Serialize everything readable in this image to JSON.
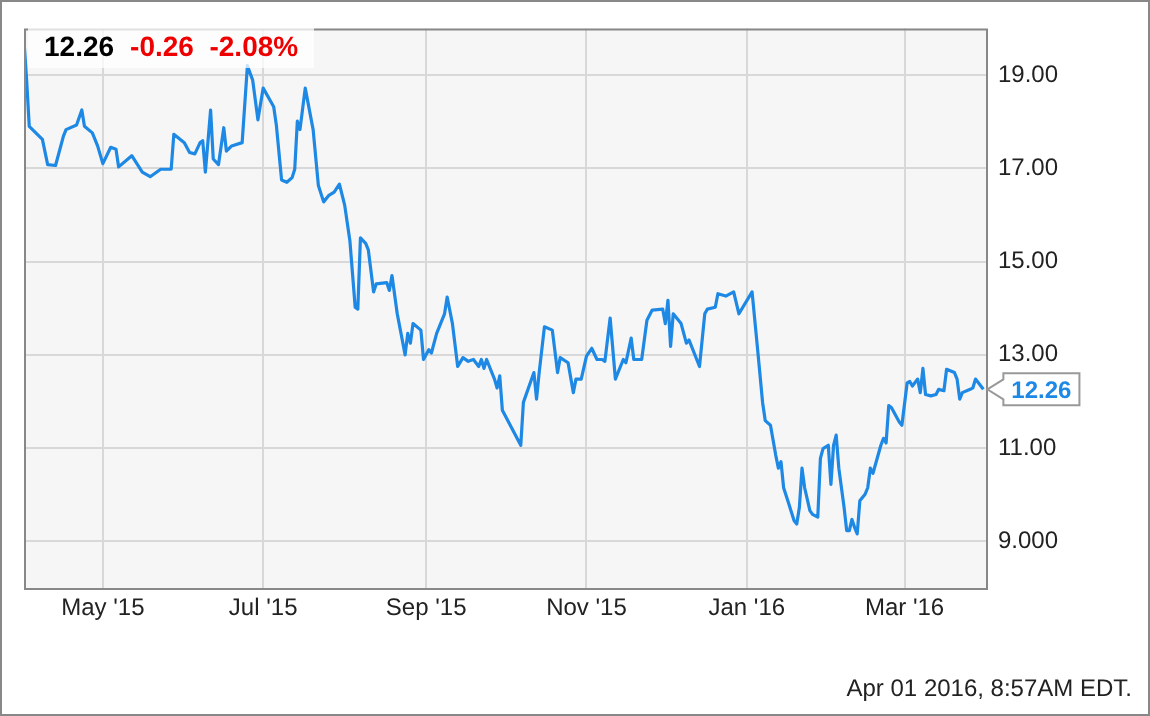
{
  "chart_data": {
    "type": "line",
    "title": "12.26",
    "subtitle": "-0.26  -2.08%",
    "x": [
      "2015-04-01",
      "2015-04-02",
      "2015-04-03",
      "2015-04-08",
      "2015-04-10",
      "2015-04-13",
      "2015-04-16",
      "2015-04-17",
      "2015-04-21",
      "2015-04-23",
      "2015-04-24",
      "2015-04-27",
      "2015-04-29",
      "2015-05-01",
      "2015-05-04",
      "2015-05-06",
      "2015-05-07",
      "2015-05-12",
      "2015-05-16",
      "2015-05-19",
      "2015-05-23",
      "2015-05-27",
      "2015-05-28",
      "2015-06-01",
      "2015-06-03",
      "2015-06-05",
      "2015-06-07",
      "2015-06-08",
      "2015-06-09",
      "2015-06-11",
      "2015-06-12",
      "2015-06-14",
      "2015-06-16",
      "2015-06-17",
      "2015-06-19",
      "2015-06-23",
      "2015-06-25",
      "2015-06-27",
      "2015-06-29",
      "2015-07-01",
      "2015-07-05",
      "2015-07-06",
      "2015-07-08",
      "2015-07-10",
      "2015-07-12",
      "2015-07-13",
      "2015-07-14",
      "2015-07-15",
      "2015-07-17",
      "2015-07-20",
      "2015-07-22",
      "2015-07-24",
      "2015-07-26",
      "2015-07-28",
      "2015-07-30",
      "2015-08-01",
      "2015-08-03",
      "2015-08-05",
      "2015-08-06",
      "2015-08-07",
      "2015-08-09",
      "2015-08-10",
      "2015-08-12",
      "2015-08-13",
      "2015-08-17",
      "2015-08-18",
      "2015-08-19",
      "2015-08-21",
      "2015-08-24",
      "2015-08-25",
      "2015-08-26",
      "2015-08-27",
      "2015-08-30",
      "2015-08-31",
      "2015-09-02",
      "2015-09-03",
      "2015-09-05",
      "2015-09-08",
      "2015-09-09",
      "2015-09-11",
      "2015-09-13",
      "2015-09-15",
      "2015-09-17",
      "2015-09-19",
      "2015-09-21",
      "2015-09-22",
      "2015-09-23",
      "2015-09-24",
      "2015-09-27",
      "2015-09-28",
      "2015-09-29",
      "2015-09-30",
      "2015-10-03",
      "2015-10-07",
      "2015-10-08",
      "2015-10-12",
      "2015-10-13",
      "2015-10-14",
      "2015-10-16",
      "2015-10-19",
      "2015-10-21",
      "2015-10-22",
      "2015-10-25",
      "2015-10-27",
      "2015-10-28",
      "2015-10-30",
      "2015-11-01",
      "2015-11-03",
      "2015-11-05",
      "2015-11-07",
      "2015-11-08",
      "2015-11-10",
      "2015-11-12",
      "2015-11-15",
      "2015-11-16",
      "2015-11-18",
      "2015-11-19",
      "2015-11-22",
      "2015-11-24",
      "2015-11-26",
      "2015-11-30",
      "2015-12-01",
      "2015-12-02",
      "2015-12-03",
      "2015-12-04",
      "2015-12-07",
      "2015-12-09",
      "2015-12-10",
      "2015-12-14",
      "2015-12-16",
      "2015-12-17",
      "2015-12-20",
      "2015-12-21",
      "2015-12-24",
      "2015-12-27",
      "2015-12-29",
      "2016-01-03",
      "2016-01-05",
      "2016-01-07",
      "2016-01-08",
      "2016-01-10",
      "2016-01-12",
      "2016-01-13",
      "2016-01-14",
      "2016-01-15",
      "2016-01-17",
      "2016-01-19",
      "2016-01-20",
      "2016-01-21",
      "2016-01-22",
      "2016-01-23",
      "2016-01-25",
      "2016-01-26",
      "2016-01-28",
      "2016-01-29",
      "2016-01-30",
      "2016-02-01",
      "2016-02-02",
      "2016-02-03",
      "2016-02-04",
      "2016-02-05",
      "2016-02-07",
      "2016-02-08",
      "2016-02-09",
      "2016-02-10",
      "2016-02-11",
      "2016-02-12",
      "2016-02-13",
      "2016-02-15",
      "2016-02-16",
      "2016-02-17",
      "2016-02-18",
      "2016-02-21",
      "2016-02-22",
      "2016-02-23",
      "2016-02-24",
      "2016-02-25",
      "2016-02-28",
      "2016-02-29",
      "2016-03-02",
      "2016-03-03",
      "2016-03-04",
      "2016-03-06",
      "2016-03-07",
      "2016-03-08",
      "2016-03-09",
      "2016-03-11",
      "2016-03-13",
      "2016-03-14",
      "2016-03-16",
      "2016-03-17",
      "2016-03-20",
      "2016-03-21",
      "2016-03-22",
      "2016-03-23",
      "2016-03-26",
      "2016-03-27",
      "2016-03-28",
      "2016-03-31"
    ],
    "series": [
      {
        "color": "#1e88e5",
        "values": [
          19.73,
          18.89,
          17.9,
          17.62,
          17.08,
          17.06,
          17.69,
          17.83,
          17.93,
          18.25,
          17.9,
          17.76,
          17.48,
          17.1,
          17.45,
          17.41,
          17.03,
          17.27,
          16.92,
          16.82,
          16.98,
          16.98,
          17.73,
          17.55,
          17.34,
          17.31,
          17.55,
          17.59,
          16.92,
          18.25,
          17.2,
          17.08,
          17.87,
          17.37,
          17.48,
          17.55,
          19.2,
          18.89,
          18.04,
          18.72,
          18.32,
          17.93,
          16.75,
          16.7,
          16.8,
          16.98,
          18.01,
          17.83,
          18.72,
          17.83,
          16.63,
          16.28,
          16.42,
          16.49,
          16.66,
          16.21,
          15.44,
          14.02,
          13.98,
          15.51,
          15.39,
          15.25,
          14.35,
          14.52,
          14.55,
          14.38,
          14.7,
          13.88,
          13.0,
          13.46,
          13.25,
          13.67,
          13.53,
          12.9,
          13.11,
          13.04,
          13.46,
          13.88,
          14.24,
          13.67,
          12.75,
          12.94,
          12.86,
          12.9,
          12.75,
          12.9,
          12.71,
          12.9,
          12.48,
          12.29,
          12.55,
          11.81,
          11.49,
          11.06,
          11.98,
          12.62,
          12.05,
          12.62,
          13.6,
          13.53,
          12.62,
          12.94,
          12.83,
          12.19,
          12.48,
          12.48,
          12.97,
          13.14,
          12.9,
          12.9,
          12.86,
          13.79,
          12.48,
          12.9,
          12.83,
          13.36,
          12.9,
          12.9,
          13.74,
          13.96,
          13.98,
          13.67,
          14.17,
          13.18,
          13.88,
          13.67,
          13.25,
          13.32,
          12.75,
          13.88,
          13.98,
          14.02,
          14.31,
          14.26,
          14.35,
          13.88,
          14.35,
          13.18,
          11.98,
          11.59,
          11.49,
          10.85,
          10.57,
          10.71,
          10.15,
          9.8,
          9.44,
          9.37,
          9.73,
          10.57,
          10.15,
          9.66,
          9.58,
          9.52,
          10.78,
          10.99,
          11.06,
          10.22,
          11.06,
          11.28,
          10.57,
          9.73,
          9.23,
          9.23,
          9.47,
          9.3,
          9.16,
          9.87,
          10.01,
          10.15,
          10.57,
          10.46,
          11.06,
          11.21,
          11.11,
          11.91,
          11.87,
          11.56,
          11.49,
          12.4,
          12.43,
          12.33,
          12.48,
          12.19,
          12.71,
          12.15,
          12.12,
          12.15,
          12.26,
          12.23,
          12.69,
          12.62,
          12.48,
          12.05,
          12.19,
          12.26,
          12.29,
          12.48,
          12.26
        ]
      }
    ],
    "xlim": [
      "2015-04-01",
      "2016-04-01"
    ],
    "xticks": [
      {
        "value": "2015-05-01",
        "label": "May '15"
      },
      {
        "value": "2015-07-01",
        "label": "Jul '15"
      },
      {
        "value": "2015-09-01",
        "label": "Sep '15"
      },
      {
        "value": "2015-11-01",
        "label": "Nov '15"
      },
      {
        "value": "2016-01-01",
        "label": "Jan '16"
      },
      {
        "value": "2016-03-01",
        "label": "Mar '16"
      }
    ],
    "ylim": [
      8,
      20
    ],
    "yticks": [
      {
        "value": 9,
        "label": "9.000"
      },
      {
        "value": 11,
        "label": "11.00"
      },
      {
        "value": 13,
        "label": "13.00"
      },
      {
        "value": 15,
        "label": "15.00"
      },
      {
        "value": 17,
        "label": "17.00"
      },
      {
        "value": 19,
        "label": "19.00"
      }
    ],
    "grid": true,
    "legend": false,
    "marker": "none",
    "line_style": "solid",
    "annotations": [
      {
        "text": "12.26",
        "x": "2016-03-31",
        "y": 12.26
      },
      "Apr 01 2016, 8:57AM EDT."
    ]
  }
}
